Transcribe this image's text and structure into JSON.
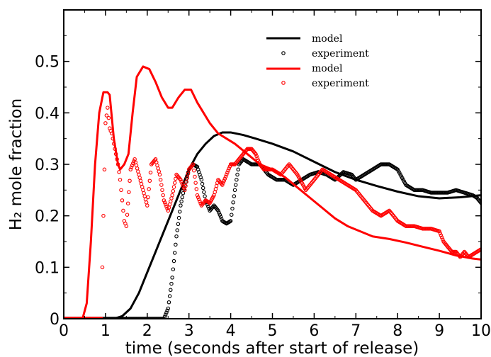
{
  "chart_data": {
    "type": "line",
    "xlabel": "time (seconds after start of release)",
    "ylabel": "H₂ mole fraction",
    "xlim": [
      0,
      10
    ],
    "ylim": [
      0,
      0.6
    ],
    "x_ticks": [
      0,
      1,
      2,
      3,
      4,
      5,
      6,
      7,
      8,
      9,
      10
    ],
    "y_ticks": [
      0,
      0.1,
      0.2,
      0.3,
      0.4,
      0.5
    ],
    "y_tick_labels": [
      "0",
      "0.1",
      "0.2",
      "0.3",
      "0.4",
      "0.5"
    ],
    "grid": false,
    "legend_placement": "top-right",
    "colors": {
      "black": "#000000",
      "red": "#ff0000"
    },
    "series": [
      {
        "name": "model",
        "style": "line",
        "color": "#000000",
        "x": [
          0,
          1.2,
          1.4,
          1.6,
          1.8,
          2.0,
          2.2,
          2.4,
          2.6,
          2.8,
          3.0,
          3.2,
          3.4,
          3.6,
          3.8,
          4.0,
          4.3,
          4.6,
          5.0,
          5.5,
          6.0,
          6.5,
          7.0,
          7.5,
          8.0,
          8.5,
          9.0,
          9.5,
          10.0
        ],
        "y": [
          0,
          0,
          0.005,
          0.02,
          0.05,
          0.09,
          0.13,
          0.17,
          0.21,
          0.25,
          0.29,
          0.32,
          0.34,
          0.355,
          0.362,
          0.362,
          0.357,
          0.35,
          0.34,
          0.325,
          0.305,
          0.285,
          0.27,
          0.258,
          0.247,
          0.238,
          0.234,
          0.236,
          0.24
        ]
      },
      {
        "name": "experiment",
        "style": "markers",
        "color": "#000000",
        "x": [
          0,
          2.4,
          2.5,
          2.6,
          2.7,
          2.8,
          2.9,
          3.0,
          3.1,
          3.2,
          3.3,
          3.4,
          3.5,
          3.6,
          3.7,
          3.8,
          3.9,
          4.0,
          4.1,
          4.2,
          4.3,
          4.4,
          4.5,
          4.7,
          4.9,
          5.1,
          5.3,
          5.5,
          5.7,
          5.9,
          6.1,
          6.3,
          6.5,
          6.7,
          6.9,
          7.0,
          7.2,
          7.4,
          7.6,
          7.8,
          8.0,
          8.2,
          8.4,
          8.6,
          8.8,
          9.0,
          9.2,
          9.4,
          9.6,
          9.8,
          9.9,
          10.0
        ],
        "y": [
          0,
          0,
          0.02,
          0.08,
          0.16,
          0.22,
          0.26,
          0.29,
          0.3,
          0.295,
          0.27,
          0.23,
          0.21,
          0.22,
          0.21,
          0.19,
          0.185,
          0.19,
          0.25,
          0.3,
          0.31,
          0.305,
          0.3,
          0.3,
          0.28,
          0.27,
          0.27,
          0.26,
          0.27,
          0.28,
          0.285,
          0.28,
          0.27,
          0.285,
          0.28,
          0.27,
          0.28,
          0.29,
          0.3,
          0.3,
          0.29,
          0.26,
          0.25,
          0.25,
          0.245,
          0.245,
          0.245,
          0.25,
          0.245,
          0.24,
          0.235,
          0.225
        ]
      },
      {
        "name": "model",
        "style": "line",
        "color": "#ff0000",
        "x": [
          0,
          0.45,
          0.55,
          0.65,
          0.75,
          0.85,
          0.95,
          1.05,
          1.1,
          1.2,
          1.3,
          1.35,
          1.45,
          1.55,
          1.65,
          1.75,
          1.9,
          2.05,
          2.2,
          2.35,
          2.5,
          2.6,
          2.75,
          2.9,
          3.05,
          3.2,
          3.35,
          3.5,
          3.7,
          3.9,
          4.1,
          4.4,
          4.7,
          5.0,
          5.3,
          5.6,
          5.9,
          6.2,
          6.5,
          6.8,
          7.1,
          7.4,
          7.8,
          8.2,
          8.6,
          9.0,
          9.4,
          9.8,
          10.0
        ],
        "y": [
          0,
          0,
          0.03,
          0.15,
          0.3,
          0.4,
          0.44,
          0.44,
          0.435,
          0.35,
          0.3,
          0.29,
          0.3,
          0.32,
          0.4,
          0.47,
          0.49,
          0.485,
          0.46,
          0.43,
          0.41,
          0.41,
          0.43,
          0.445,
          0.445,
          0.42,
          0.4,
          0.38,
          0.36,
          0.35,
          0.34,
          0.32,
          0.3,
          0.29,
          0.275,
          0.255,
          0.235,
          0.215,
          0.195,
          0.18,
          0.17,
          0.16,
          0.155,
          0.148,
          0.14,
          0.132,
          0.123,
          0.117,
          0.115
        ]
      },
      {
        "name": "experiment",
        "style": "markers",
        "color": "#ff0000",
        "x": [
          0,
          0.9,
          0.95,
          1.0,
          1.05,
          1.1,
          1.15,
          1.2,
          1.25,
          1.3,
          1.35,
          1.4,
          1.45,
          1.5,
          1.6,
          1.7,
          1.8,
          1.9,
          2.0,
          2.1,
          2.2,
          2.3,
          2.4,
          2.5,
          2.6,
          2.7,
          2.8,
          2.9,
          3.0,
          3.1,
          3.2,
          3.3,
          3.4,
          3.5,
          3.6,
          3.7,
          3.8,
          3.9,
          4.0,
          4.1,
          4.2,
          4.3,
          4.4,
          4.5,
          4.6,
          4.7,
          4.8,
          5.0,
          5.2,
          5.4,
          5.6,
          5.8,
          6.0,
          6.2,
          6.4,
          6.6,
          6.8,
          7.0,
          7.2,
          7.4,
          7.6,
          7.8,
          8.0,
          8.2,
          8.4,
          8.6,
          8.8,
          9.0,
          9.1,
          9.2,
          9.3,
          9.4,
          9.5,
          9.6,
          9.7,
          9.8,
          9.9,
          10.0
        ],
        "y": [
          0,
          0,
          0.2,
          0.38,
          0.41,
          0.37,
          0.36,
          0.34,
          0.32,
          0.3,
          0.27,
          0.23,
          0.19,
          0.18,
          0.29,
          0.31,
          0.28,
          0.25,
          0.22,
          0.3,
          0.31,
          0.28,
          0.23,
          0.21,
          0.24,
          0.28,
          0.27,
          0.25,
          0.29,
          0.3,
          0.24,
          0.22,
          0.23,
          0.225,
          0.24,
          0.27,
          0.26,
          0.28,
          0.3,
          0.3,
          0.31,
          0.32,
          0.33,
          0.33,
          0.32,
          0.3,
          0.29,
          0.29,
          0.28,
          0.3,
          0.28,
          0.25,
          0.27,
          0.29,
          0.28,
          0.27,
          0.26,
          0.25,
          0.23,
          0.21,
          0.2,
          0.21,
          0.19,
          0.18,
          0.18,
          0.175,
          0.175,
          0.17,
          0.15,
          0.14,
          0.13,
          0.13,
          0.12,
          0.13,
          0.12,
          0.125,
          0.13,
          0.135
        ]
      }
    ]
  }
}
